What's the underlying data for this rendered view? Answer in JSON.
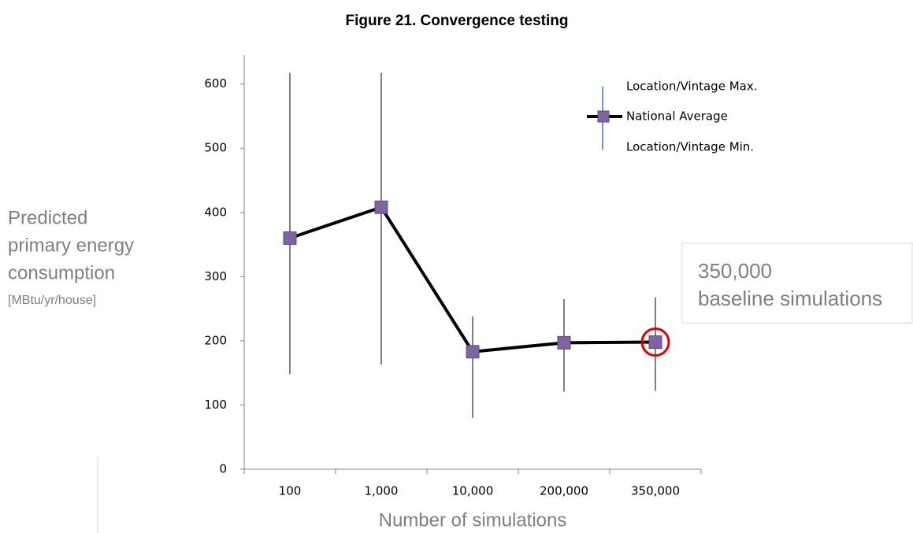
{
  "chart_data": {
    "type": "line",
    "title": "Figure 21. Convergence testing",
    "y_label": [
      "Predicted",
      "primary energy",
      "consumption"
    ],
    "y_unit": "[MBtu/yr/house]",
    "x_label": "Number of simulations",
    "categories": [
      "100",
      "1,000",
      "10,000",
      "200,000",
      "350,000"
    ],
    "series": [
      {
        "name": "National Average",
        "color": "#8064a2",
        "values": [
          360,
          408,
          183,
          197,
          198
        ]
      }
    ],
    "max_series": {
      "name": "Location/Vintage Max.",
      "color": "#4472c4",
      "values": [
        617,
        617,
        238,
        265,
        268
      ]
    },
    "min_series": {
      "name": "Location/Vintage Min.",
      "values": [
        148,
        163,
        80,
        121,
        122
      ]
    },
    "annotation": [
      "350,000",
      "baseline simulations"
    ],
    "ylim": [
      0,
      645
    ],
    "yticks": [
      0,
      100,
      200,
      300,
      400,
      500,
      600
    ]
  }
}
